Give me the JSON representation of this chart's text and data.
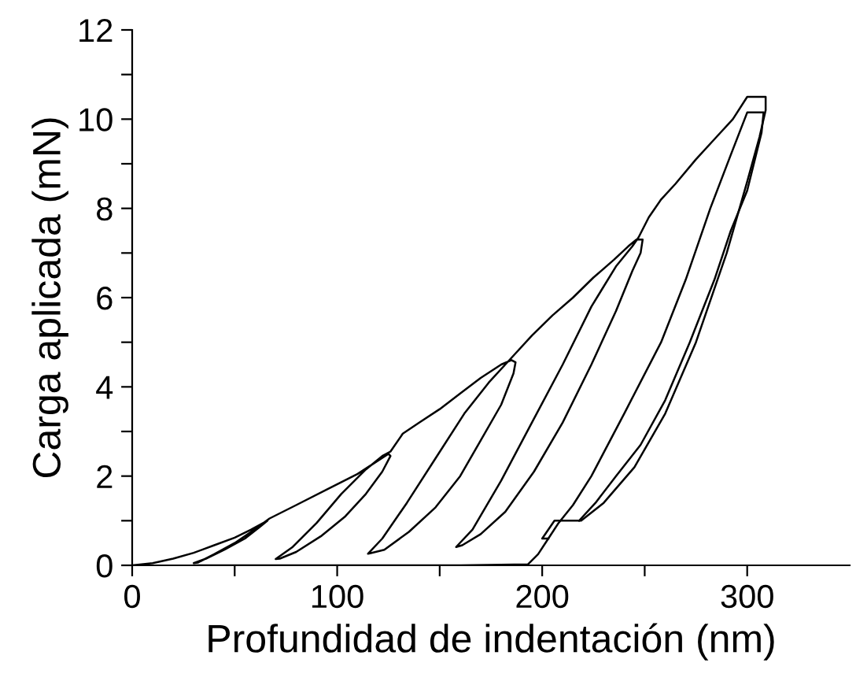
{
  "chart_data": {
    "type": "line",
    "xlabel": "Profundidad de indentación (nm)",
    "ylabel": "Carga aplicada (mN)",
    "series": [
      {
        "color": "#000000",
        "x": [
          0,
          10,
          20,
          30,
          40,
          50,
          58,
          64,
          66,
          62,
          55,
          45,
          36,
          30,
          32,
          40,
          50,
          58,
          64,
          67,
          80,
          95,
          110,
          120,
          125,
          126,
          122,
          114,
          104,
          92,
          80,
          72,
          70,
          78,
          90,
          102,
          114,
          122,
          126,
          132,
          140,
          150,
          160,
          170,
          180,
          185,
          187,
          186,
          180,
          170,
          160,
          148,
          135,
          123,
          116,
          115,
          122,
          134,
          148,
          162,
          174,
          182,
          185,
          195,
          205,
          215,
          225,
          235,
          242,
          246,
          249,
          248,
          244,
          236,
          224,
          210,
          196,
          182,
          170,
          161,
          158,
          166,
          180,
          195,
          210,
          224,
          236,
          244,
          247,
          252,
          258,
          265,
          275,
          285,
          293,
          300,
          304,
          309,
          309,
          306,
          300,
          290,
          275,
          260,
          245,
          230,
          219,
          212,
          206,
          200,
          203
        ],
        "values": [
          0,
          0.05,
          0.15,
          0.28,
          0.45,
          0.62,
          0.8,
          0.95,
          1.0,
          0.85,
          0.6,
          0.35,
          0.15,
          0.05,
          0.06,
          0.25,
          0.5,
          0.75,
          0.95,
          1.05,
          1.35,
          1.7,
          2.05,
          2.35,
          2.5,
          2.45,
          2.1,
          1.6,
          1.1,
          0.65,
          0.3,
          0.15,
          0.14,
          0.4,
          0.95,
          1.6,
          2.15,
          2.45,
          2.55,
          2.95,
          3.2,
          3.5,
          3.85,
          4.2,
          4.5,
          4.6,
          4.55,
          4.3,
          3.6,
          2.8,
          2.0,
          1.3,
          0.75,
          0.35,
          0.27,
          0.26,
          0.6,
          1.4,
          2.4,
          3.4,
          4.1,
          4.5,
          4.65,
          5.15,
          5.6,
          6.0,
          6.45,
          6.85,
          7.15,
          7.3,
          7.3,
          7.0,
          6.6,
          5.7,
          4.5,
          3.2,
          2.1,
          1.2,
          0.7,
          0.45,
          0.41,
          0.8,
          1.9,
          3.2,
          4.5,
          5.8,
          6.7,
          7.15,
          7.35,
          7.8,
          8.2,
          8.55,
          9.1,
          9.6,
          10.0,
          10.5,
          10.5,
          10.5,
          10.2,
          9.6,
          8.6,
          7.0,
          5.0,
          3.4,
          2.2,
          1.4,
          1.0,
          1.0,
          1.0,
          0.6,
          0.6
        ]
      },
      {
        "color": "#000000",
        "x": [
          30,
          100,
          160,
          193,
          198,
          203,
          208,
          215,
          224,
          240,
          258,
          270,
          282,
          292,
          300,
          308,
          307,
          300,
          292,
          284,
          272,
          260,
          248,
          236,
          226,
          218
        ],
        "values": [
          0,
          0,
          0,
          0.02,
          0.25,
          0.6,
          0.95,
          1.35,
          2.0,
          3.4,
          5.0,
          6.4,
          8.0,
          9.2,
          10.15,
          10.15,
          9.7,
          8.4,
          7.5,
          6.4,
          5.0,
          3.7,
          2.7,
          2.0,
          1.4,
          1.0
        ]
      }
    ],
    "xlim": [
      0,
      350
    ],
    "ylim": [
      0,
      12
    ],
    "xticks": [
      0,
      {
        "value": 50,
        "label": null
      },
      100,
      {
        "value": 150,
        "label": null
      },
      200,
      {
        "value": 250,
        "label": null
      },
      300
    ],
    "yticks": [
      0,
      {
        "value": 1,
        "label": null
      },
      2,
      {
        "value": 3,
        "label": null
      },
      4,
      {
        "value": 5,
        "label": null
      },
      6,
      {
        "value": 7,
        "label": null
      },
      8,
      {
        "value": 9,
        "label": null
      },
      10,
      {
        "value": 11,
        "label": null
      },
      12
    ],
    "grid": false,
    "legend": false,
    "marker": "none",
    "line_style": "solid"
  }
}
